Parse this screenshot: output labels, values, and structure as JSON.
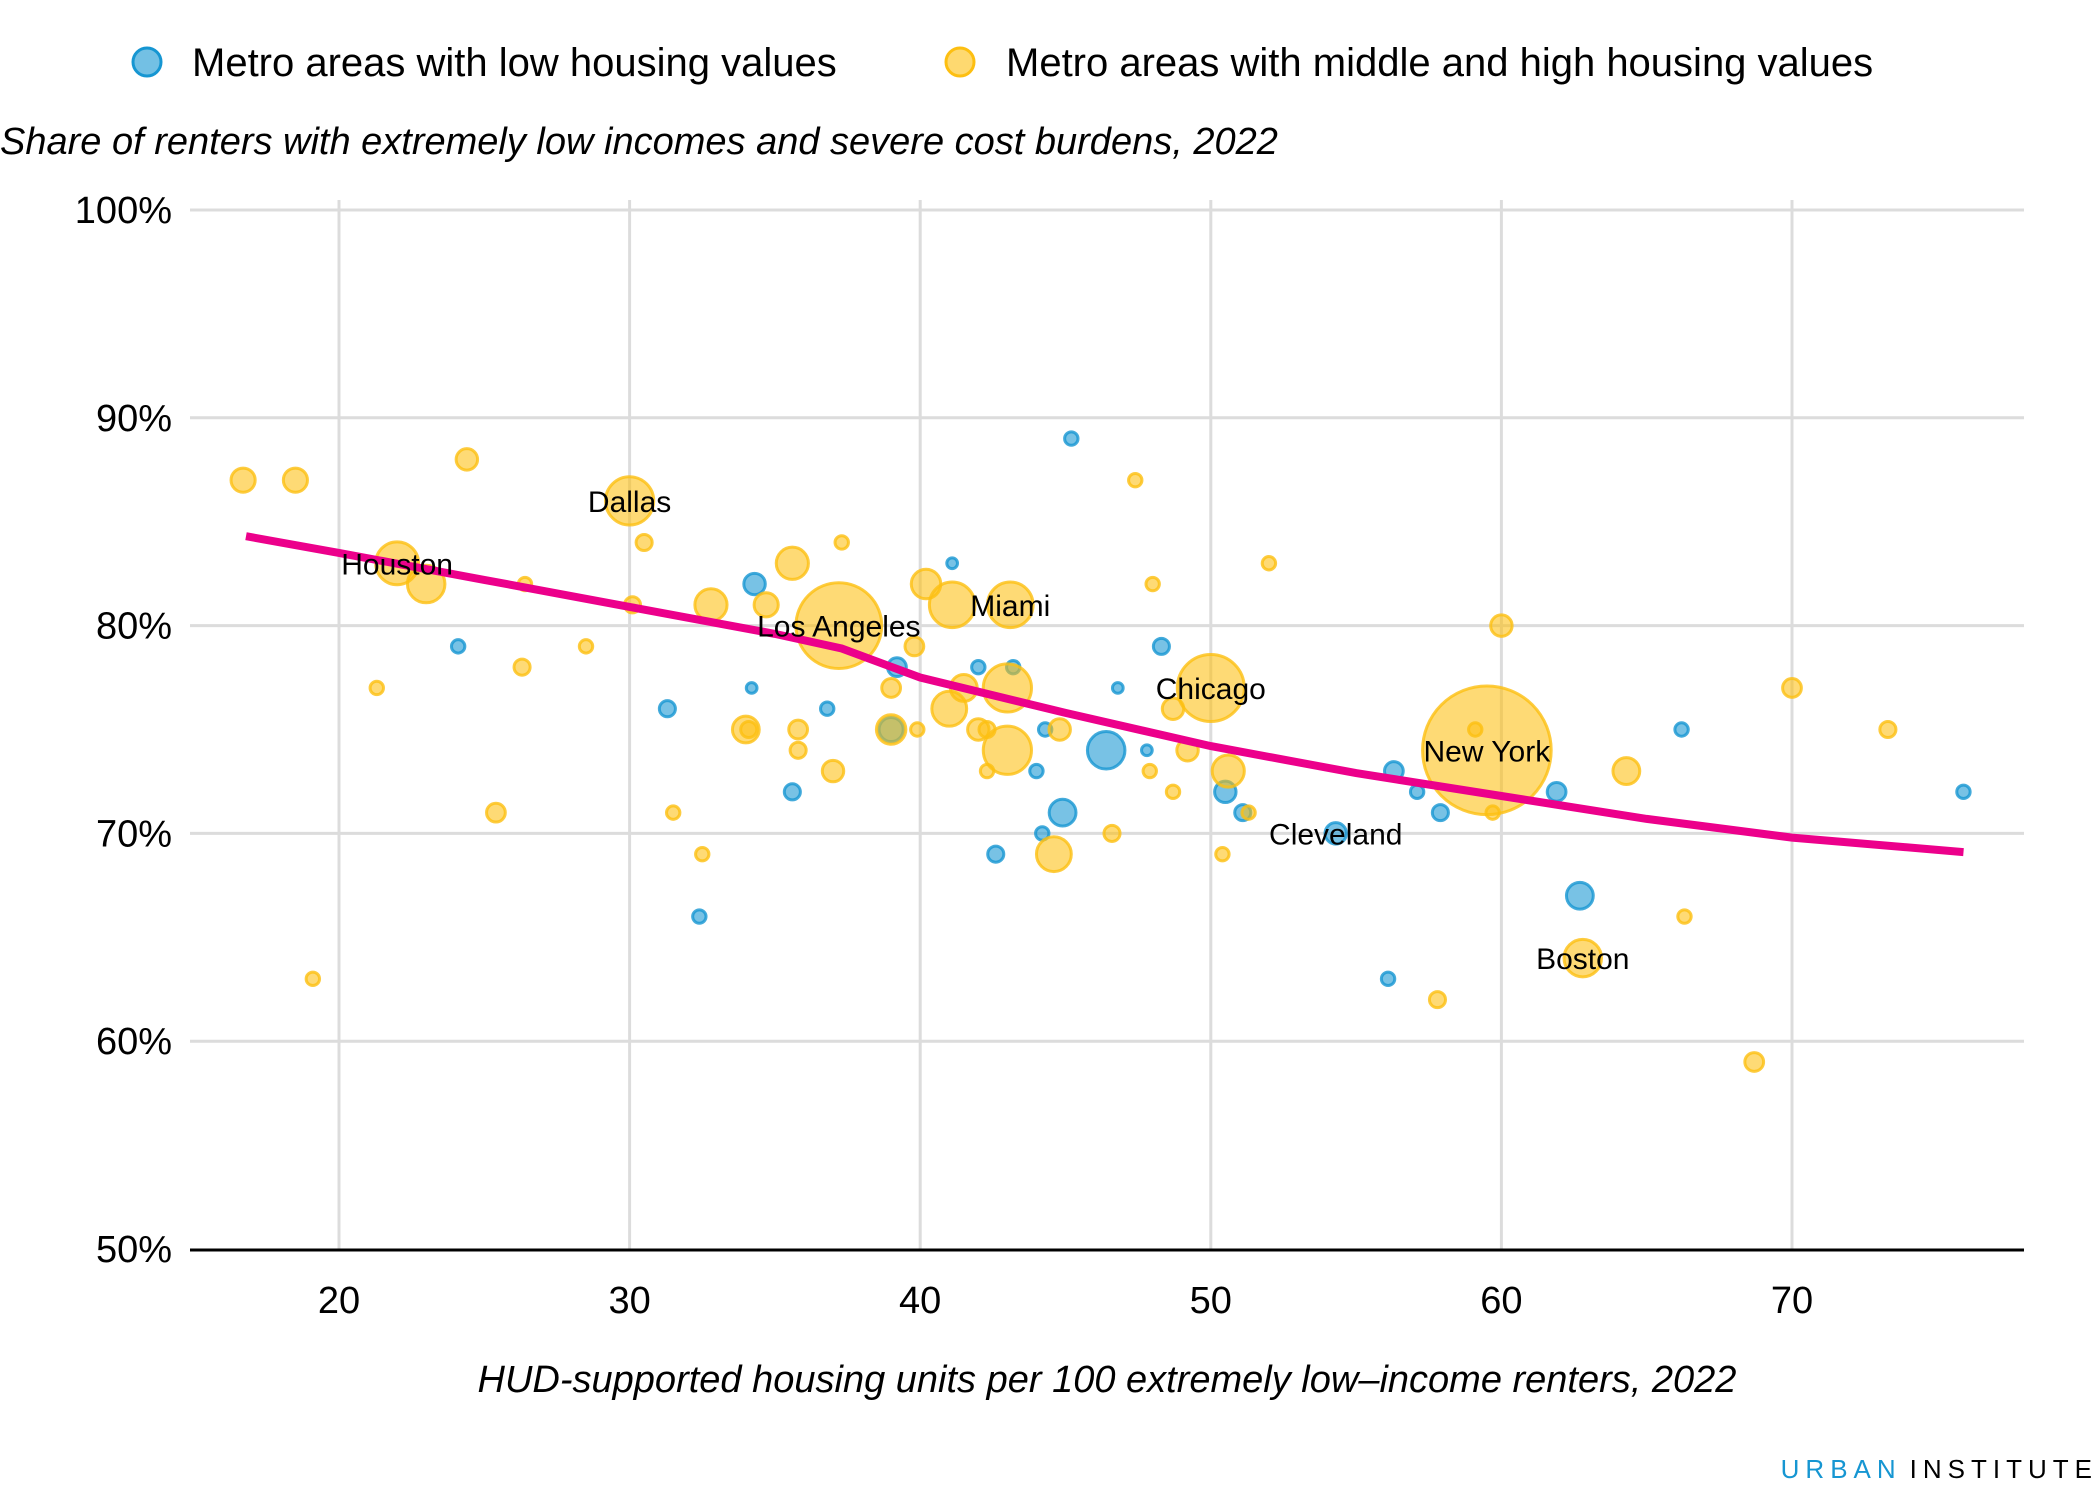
{
  "chart_data": {
    "type": "scatter",
    "subtitle": "Share of renters with extremely low incomes and severe cost burdens, 2022",
    "xlabel": "HUD-supported housing units per 100 extremely low–income renters, 2022",
    "ylabel": "",
    "xlim": [
      15,
      78
    ],
    "ylim": [
      50,
      100
    ],
    "xticks": [
      20,
      30,
      40,
      50,
      60,
      70
    ],
    "xtick_labels": [
      "20",
      "30",
      "40",
      "50",
      "60",
      "70"
    ],
    "yticks": [
      50,
      60,
      70,
      80,
      90,
      100
    ],
    "ytick_labels": [
      "50%",
      "60%",
      "70%",
      "80%",
      "90%",
      "100%"
    ],
    "grid": true,
    "legend_position": "top",
    "colors": {
      "low": "#1696d2",
      "midhigh": "#fdbf11",
      "trend": "#ec008b"
    },
    "series": [
      {
        "name": "Metro areas with low housing values",
        "key": "low",
        "points": [
          [
            24.1,
            79,
            5
          ],
          [
            31.3,
            76,
            6
          ],
          [
            32.4,
            66,
            5
          ],
          [
            34.2,
            77,
            4
          ],
          [
            34.3,
            82,
            8
          ],
          [
            35.6,
            72,
            6
          ],
          [
            36.8,
            76,
            5
          ],
          [
            39,
            75,
            9
          ],
          [
            39.2,
            78,
            7
          ],
          [
            41.1,
            83,
            4
          ],
          [
            42,
            78,
            5
          ],
          [
            43.2,
            78,
            5
          ],
          [
            44.3,
            75,
            5
          ],
          [
            44,
            73,
            5
          ],
          [
            42.6,
            69,
            6
          ],
          [
            44.2,
            70,
            5
          ],
          [
            44.9,
            71,
            10
          ],
          [
            45.2,
            89,
            5
          ],
          [
            46.4,
            74,
            14
          ],
          [
            46.8,
            77,
            4
          ],
          [
            47.8,
            74,
            4
          ],
          [
            48.3,
            79,
            6
          ],
          [
            50.5,
            72,
            8
          ],
          [
            51.1,
            71,
            6
          ],
          [
            54.3,
            70,
            8
          ],
          [
            56.3,
            73,
            7
          ],
          [
            57.1,
            72,
            5
          ],
          [
            57.9,
            71,
            6
          ],
          [
            56.1,
            63,
            5
          ],
          [
            61.9,
            72,
            7
          ],
          [
            62.7,
            67,
            10
          ],
          [
            66.2,
            75,
            5
          ],
          [
            75.9,
            72,
            5
          ]
        ]
      },
      {
        "name": "Metro areas with middle and high housing values",
        "key": "midhigh",
        "points": [
          [
            16.7,
            87,
            9
          ],
          [
            18.5,
            87,
            9
          ],
          [
            24.4,
            88,
            8
          ],
          [
            30,
            86,
            18
          ],
          [
            30.5,
            84,
            6
          ],
          [
            22,
            83,
            16
          ],
          [
            23,
            82,
            14
          ],
          [
            26.4,
            82,
            5
          ],
          [
            30.1,
            81,
            6
          ],
          [
            32.8,
            81,
            12
          ],
          [
            35.6,
            83,
            12
          ],
          [
            34.7,
            81,
            9
          ],
          [
            37.3,
            84,
            5
          ],
          [
            37.2,
            80,
            32
          ],
          [
            40.2,
            82,
            11
          ],
          [
            41.1,
            81,
            17
          ],
          [
            43.1,
            81,
            17
          ],
          [
            39.8,
            79,
            7
          ],
          [
            39,
            77,
            7
          ],
          [
            41.5,
            77,
            10
          ],
          [
            43,
            77,
            18
          ],
          [
            41,
            76,
            13
          ],
          [
            42,
            75,
            8
          ],
          [
            42.3,
            75,
            6
          ],
          [
            44.8,
            75,
            8
          ],
          [
            43,
            74,
            18
          ],
          [
            42.3,
            73,
            5
          ],
          [
            37,
            73,
            8
          ],
          [
            35.8,
            75,
            7
          ],
          [
            35.8,
            74,
            6
          ],
          [
            34,
            75,
            10
          ],
          [
            34.1,
            75,
            6
          ],
          [
            39,
            75,
            11
          ],
          [
            39.9,
            75,
            5
          ],
          [
            21.3,
            77,
            5
          ],
          [
            26.3,
            78,
            6
          ],
          [
            28.5,
            79,
            5
          ],
          [
            25.4,
            71,
            7
          ],
          [
            31.5,
            71,
            5
          ],
          [
            32.5,
            69,
            5
          ],
          [
            19.1,
            63,
            5
          ],
          [
            44.6,
            69,
            13
          ],
          [
            46.6,
            70,
            6
          ],
          [
            47.4,
            87,
            5
          ],
          [
            48,
            82,
            5
          ],
          [
            52,
            83,
            5
          ],
          [
            47.9,
            73,
            5
          ],
          [
            48.7,
            72,
            5
          ],
          [
            49.2,
            74,
            8
          ],
          [
            48.7,
            76,
            8
          ],
          [
            50,
            77,
            25
          ],
          [
            50.6,
            73,
            12
          ],
          [
            50.4,
            69,
            5
          ],
          [
            51.3,
            71,
            5
          ],
          [
            59.5,
            74,
            48
          ],
          [
            59.1,
            75,
            5
          ],
          [
            59.7,
            71,
            5
          ],
          [
            60,
            80,
            8
          ],
          [
            64.3,
            73,
            10
          ],
          [
            62.8,
            64,
            14
          ],
          [
            57.8,
            62,
            6
          ],
          [
            66.3,
            66,
            5
          ],
          [
            68.7,
            59,
            7
          ],
          [
            70,
            77,
            7
          ],
          [
            73.3,
            75,
            6
          ]
        ]
      }
    ],
    "trend_line": [
      [
        16.8,
        84.3
      ],
      [
        20,
        83.5
      ],
      [
        25,
        82.2
      ],
      [
        30,
        80.9
      ],
      [
        35,
        79.6
      ],
      [
        37.3,
        78.9
      ],
      [
        40,
        77.5
      ],
      [
        45,
        75.8
      ],
      [
        50,
        74.2
      ],
      [
        55,
        72.9
      ],
      [
        60,
        71.8
      ],
      [
        65,
        70.7
      ],
      [
        70,
        69.8
      ],
      [
        75.9,
        69.1
      ]
    ],
    "annotations": [
      {
        "text": "Dallas",
        "x": 30,
        "y": 86
      },
      {
        "text": "Houston",
        "x": 22,
        "y": 83
      },
      {
        "text": "Los Angeles",
        "x": 37.2,
        "y": 80
      },
      {
        "text": "Miami",
        "x": 43.1,
        "y": 81
      },
      {
        "text": "Chicago",
        "x": 50,
        "y": 77
      },
      {
        "text": "New York",
        "x": 59.5,
        "y": 74
      },
      {
        "text": "Cleveland",
        "x": 54.3,
        "y": 70
      },
      {
        "text": "Boston",
        "x": 62.8,
        "y": 64
      }
    ]
  },
  "brand": {
    "part1": "URBAN",
    "part2": "INSTITUTE"
  }
}
